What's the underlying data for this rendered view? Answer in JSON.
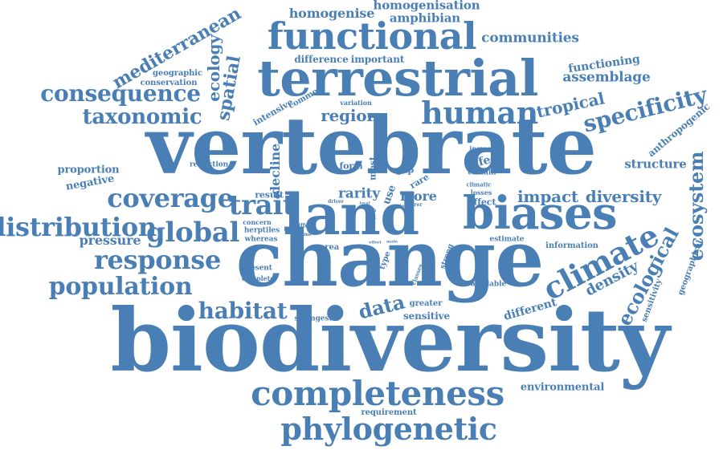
{
  "style": {
    "word_color": "#4a7fb5",
    "background": "#ffffff"
  },
  "words": {
    "biodiversity": "biodiversity",
    "vertebrate": "vertebrate",
    "change": "change",
    "land": "land",
    "terrestrial": "terrestrial",
    "biases": "biases",
    "functional": "functional",
    "completeness": "completeness",
    "phylogenetic": "phylogenetic",
    "human": "human",
    "climate": "climate",
    "coverage": "coverage",
    "response": "response",
    "distribution": "distribution",
    "population": "population",
    "consequence": "consequence",
    "taxonomic": "taxonomic",
    "specificity": "specificity",
    "trait": "trait",
    "global": "global",
    "habitat": "habitat",
    "ecological": "ecological",
    "ecosystem": "ecosystem",
    "mediterranean": "mediterranean",
    "impact": "impact",
    "diversity": "diversity",
    "density": "density",
    "tropical": "tropical",
    "data": "data",
    "structure": "structure",
    "region": "region",
    "spatial": "spatial",
    "ecology": "ecology",
    "assemblage": "assemblage",
    "functioning": "functioning",
    "communities": "communities",
    "homogenise": "homogenise",
    "homogenisation": "homogenisation",
    "amphibian": "amphibian",
    "pressure": "pressure",
    "rarity": "rarity",
    "more": "more",
    "anthropogenic": "anthropogenic",
    "environmental": "environmental",
    "different": "different",
    "proportion": "proportion",
    "negative": "negative",
    "difference": "difference",
    "important": "important",
    "decline": "decline",
    "geographic": "geographic",
    "conservation": "conservation",
    "intensive": "intensive",
    "common": "common",
    "variation": "variation",
    "effect": "effect",
    "increase": "increase",
    "certain": "certain",
    "sensitive": "sensitive",
    "greater": "greater",
    "strongest": "strongest",
    "requirement": "requirement",
    "available": "available",
    "information": "information",
    "estimate": "estimate",
    "sensitivity": "sensitivity",
    "geographical": "geographical",
    "reduction": "reduction",
    "result": "result",
    "form": "form",
    "most": "most",
    "gap": "gap",
    "rare": "rare",
    "climatic": "climatic",
    "losses": "losses",
    "affect": "affect",
    "use": "use",
    "concern": "concern",
    "herptiles": "herptiles",
    "whereas": "whereas",
    "area": "area",
    "present": "present",
    "complete": "complete",
    "type": "type",
    "strong": "strong",
    "classes": "classes",
    "driver": "driver",
    "differ": "differ",
    "biome": "biome",
    "fish": "fish",
    "test": "test",
    "local": "local",
    "term": "term",
    "rarer": "rarer",
    "effort": "effort",
    "main": "main"
  }
}
